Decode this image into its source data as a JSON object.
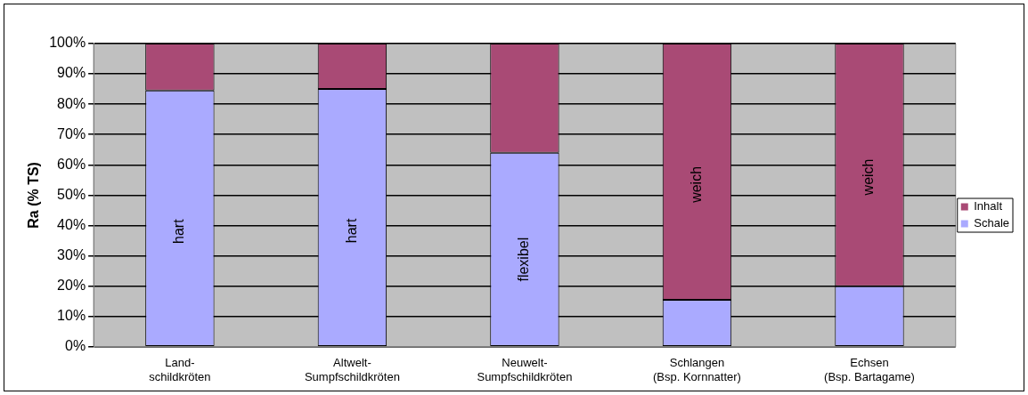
{
  "chart_data": {
    "type": "bar",
    "stacked": true,
    "ylabel": "Ra (% TS)",
    "categories": [
      "Land-\nschildkröten",
      "Altwelt-\nSumpfschildkröten",
      "Neuwelt-\nSumpfschildkröten",
      "Schlangen\n(Bsp. Kornnatter)",
      "Echsen\n(Bsp. Bartagame)"
    ],
    "series": [
      {
        "name": "Schale",
        "color": "#aaaaff",
        "values": [
          84.5,
          85,
          64,
          15.5,
          20
        ]
      },
      {
        "name": "Inhalt",
        "color": "#a94a75",
        "values": [
          15.5,
          15,
          36,
          84.5,
          80
        ]
      }
    ],
    "ylim": [
      0,
      100
    ],
    "yticks": [
      {
        "value": 0,
        "label": "0%"
      },
      {
        "value": 10,
        "label": "10%"
      },
      {
        "value": 20,
        "label": "20%"
      },
      {
        "value": 30,
        "label": "30%"
      },
      {
        "value": 40,
        "label": "40%"
      },
      {
        "value": 50,
        "label": "50%"
      },
      {
        "value": 60,
        "label": "60%"
      },
      {
        "value": 70,
        "label": "70%"
      },
      {
        "value": 80,
        "label": "80%"
      },
      {
        "value": 90,
        "label": "90%"
      },
      {
        "value": 100,
        "label": "100%"
      }
    ],
    "grid": "y",
    "legend": "right",
    "annotations": [
      "hart",
      "hart",
      "flexibel",
      "weich",
      "weich"
    ]
  }
}
